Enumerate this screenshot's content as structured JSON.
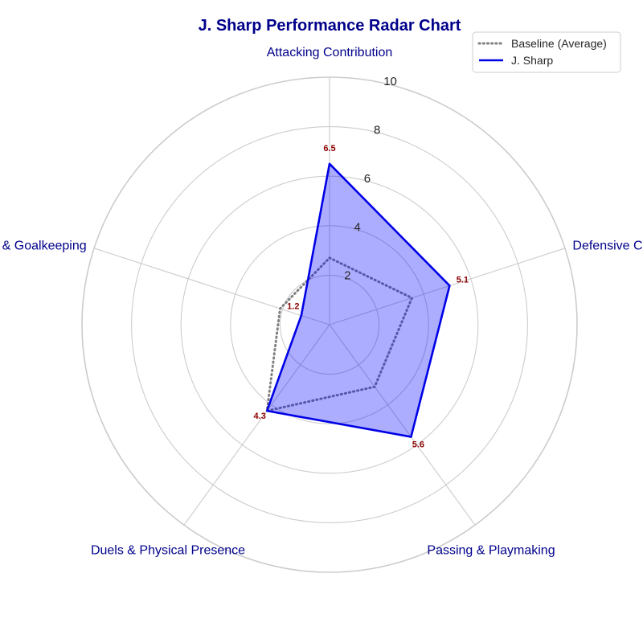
{
  "chart_data": {
    "type": "radar",
    "title": "J. Sharp Performance Radar Chart",
    "categories": [
      "Attacking Contribution",
      "Defensive Capability",
      "Passing & Playmaking",
      "Duels & Physical Presence",
      "Discipline & Goalkeeping"
    ],
    "rlim": [
      0,
      10
    ],
    "rticks": [
      "2",
      "4",
      "6",
      "8",
      "10"
    ],
    "series": [
      {
        "name": "Baseline (Average)",
        "values": [
          2.7,
          3.5,
          3.1,
          4.3,
          2.1
        ],
        "style": "dotted",
        "color": "#808080"
      },
      {
        "name": "J. Sharp",
        "values": [
          6.5,
          5.1,
          5.6,
          4.3,
          1.2
        ],
        "style": "solid",
        "color": "#0000e6",
        "fill": "#0000ff"
      }
    ],
    "data_labels": [
      "6.5",
      "5.1",
      "5.6",
      "4.3",
      "1.2"
    ],
    "legend_position": "top-right",
    "grid": true,
    "colors": {
      "title": "#00008b",
      "axis_label": "#00008b",
      "data_label": "#8b0000",
      "grid": "#cccccc"
    }
  }
}
